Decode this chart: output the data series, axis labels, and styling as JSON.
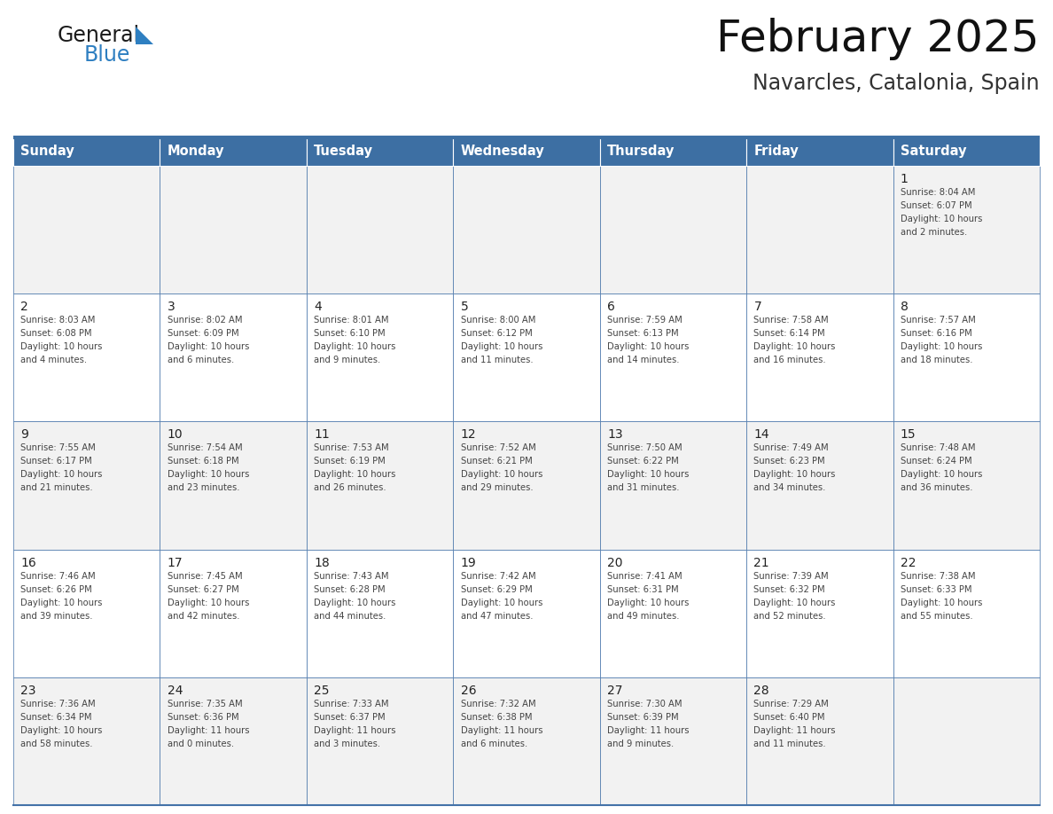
{
  "title": "February 2025",
  "subtitle": "Navarcles, Catalonia, Spain",
  "days_of_week": [
    "Sunday",
    "Monday",
    "Tuesday",
    "Wednesday",
    "Thursday",
    "Friday",
    "Saturday"
  ],
  "header_bg": "#3d6fa3",
  "header_text": "#ffffff",
  "row_bg_1": "#f2f2f2",
  "row_bg_2": "#ffffff",
  "cell_border_color": "#4472a8",
  "top_line_color": "#3d6fa3",
  "day_num_color": "#222222",
  "info_color": "#444444",
  "title_color": "#111111",
  "subtitle_color": "#333333",
  "logo_general_color": "#1a1a1a",
  "logo_blue_color": "#2e7fc1",
  "weeks": [
    [
      {
        "day": null,
        "info": ""
      },
      {
        "day": null,
        "info": ""
      },
      {
        "day": null,
        "info": ""
      },
      {
        "day": null,
        "info": ""
      },
      {
        "day": null,
        "info": ""
      },
      {
        "day": null,
        "info": ""
      },
      {
        "day": 1,
        "info": "Sunrise: 8:04 AM\nSunset: 6:07 PM\nDaylight: 10 hours\nand 2 minutes."
      }
    ],
    [
      {
        "day": 2,
        "info": "Sunrise: 8:03 AM\nSunset: 6:08 PM\nDaylight: 10 hours\nand 4 minutes."
      },
      {
        "day": 3,
        "info": "Sunrise: 8:02 AM\nSunset: 6:09 PM\nDaylight: 10 hours\nand 6 minutes."
      },
      {
        "day": 4,
        "info": "Sunrise: 8:01 AM\nSunset: 6:10 PM\nDaylight: 10 hours\nand 9 minutes."
      },
      {
        "day": 5,
        "info": "Sunrise: 8:00 AM\nSunset: 6:12 PM\nDaylight: 10 hours\nand 11 minutes."
      },
      {
        "day": 6,
        "info": "Sunrise: 7:59 AM\nSunset: 6:13 PM\nDaylight: 10 hours\nand 14 minutes."
      },
      {
        "day": 7,
        "info": "Sunrise: 7:58 AM\nSunset: 6:14 PM\nDaylight: 10 hours\nand 16 minutes."
      },
      {
        "day": 8,
        "info": "Sunrise: 7:57 AM\nSunset: 6:16 PM\nDaylight: 10 hours\nand 18 minutes."
      }
    ],
    [
      {
        "day": 9,
        "info": "Sunrise: 7:55 AM\nSunset: 6:17 PM\nDaylight: 10 hours\nand 21 minutes."
      },
      {
        "day": 10,
        "info": "Sunrise: 7:54 AM\nSunset: 6:18 PM\nDaylight: 10 hours\nand 23 minutes."
      },
      {
        "day": 11,
        "info": "Sunrise: 7:53 AM\nSunset: 6:19 PM\nDaylight: 10 hours\nand 26 minutes."
      },
      {
        "day": 12,
        "info": "Sunrise: 7:52 AM\nSunset: 6:21 PM\nDaylight: 10 hours\nand 29 minutes."
      },
      {
        "day": 13,
        "info": "Sunrise: 7:50 AM\nSunset: 6:22 PM\nDaylight: 10 hours\nand 31 minutes."
      },
      {
        "day": 14,
        "info": "Sunrise: 7:49 AM\nSunset: 6:23 PM\nDaylight: 10 hours\nand 34 minutes."
      },
      {
        "day": 15,
        "info": "Sunrise: 7:48 AM\nSunset: 6:24 PM\nDaylight: 10 hours\nand 36 minutes."
      }
    ],
    [
      {
        "day": 16,
        "info": "Sunrise: 7:46 AM\nSunset: 6:26 PM\nDaylight: 10 hours\nand 39 minutes."
      },
      {
        "day": 17,
        "info": "Sunrise: 7:45 AM\nSunset: 6:27 PM\nDaylight: 10 hours\nand 42 minutes."
      },
      {
        "day": 18,
        "info": "Sunrise: 7:43 AM\nSunset: 6:28 PM\nDaylight: 10 hours\nand 44 minutes."
      },
      {
        "day": 19,
        "info": "Sunrise: 7:42 AM\nSunset: 6:29 PM\nDaylight: 10 hours\nand 47 minutes."
      },
      {
        "day": 20,
        "info": "Sunrise: 7:41 AM\nSunset: 6:31 PM\nDaylight: 10 hours\nand 49 minutes."
      },
      {
        "day": 21,
        "info": "Sunrise: 7:39 AM\nSunset: 6:32 PM\nDaylight: 10 hours\nand 52 minutes."
      },
      {
        "day": 22,
        "info": "Sunrise: 7:38 AM\nSunset: 6:33 PM\nDaylight: 10 hours\nand 55 minutes."
      }
    ],
    [
      {
        "day": 23,
        "info": "Sunrise: 7:36 AM\nSunset: 6:34 PM\nDaylight: 10 hours\nand 58 minutes."
      },
      {
        "day": 24,
        "info": "Sunrise: 7:35 AM\nSunset: 6:36 PM\nDaylight: 11 hours\nand 0 minutes."
      },
      {
        "day": 25,
        "info": "Sunrise: 7:33 AM\nSunset: 6:37 PM\nDaylight: 11 hours\nand 3 minutes."
      },
      {
        "day": 26,
        "info": "Sunrise: 7:32 AM\nSunset: 6:38 PM\nDaylight: 11 hours\nand 6 minutes."
      },
      {
        "day": 27,
        "info": "Sunrise: 7:30 AM\nSunset: 6:39 PM\nDaylight: 11 hours\nand 9 minutes."
      },
      {
        "day": 28,
        "info": "Sunrise: 7:29 AM\nSunset: 6:40 PM\nDaylight: 11 hours\nand 11 minutes."
      },
      {
        "day": null,
        "info": ""
      }
    ]
  ]
}
